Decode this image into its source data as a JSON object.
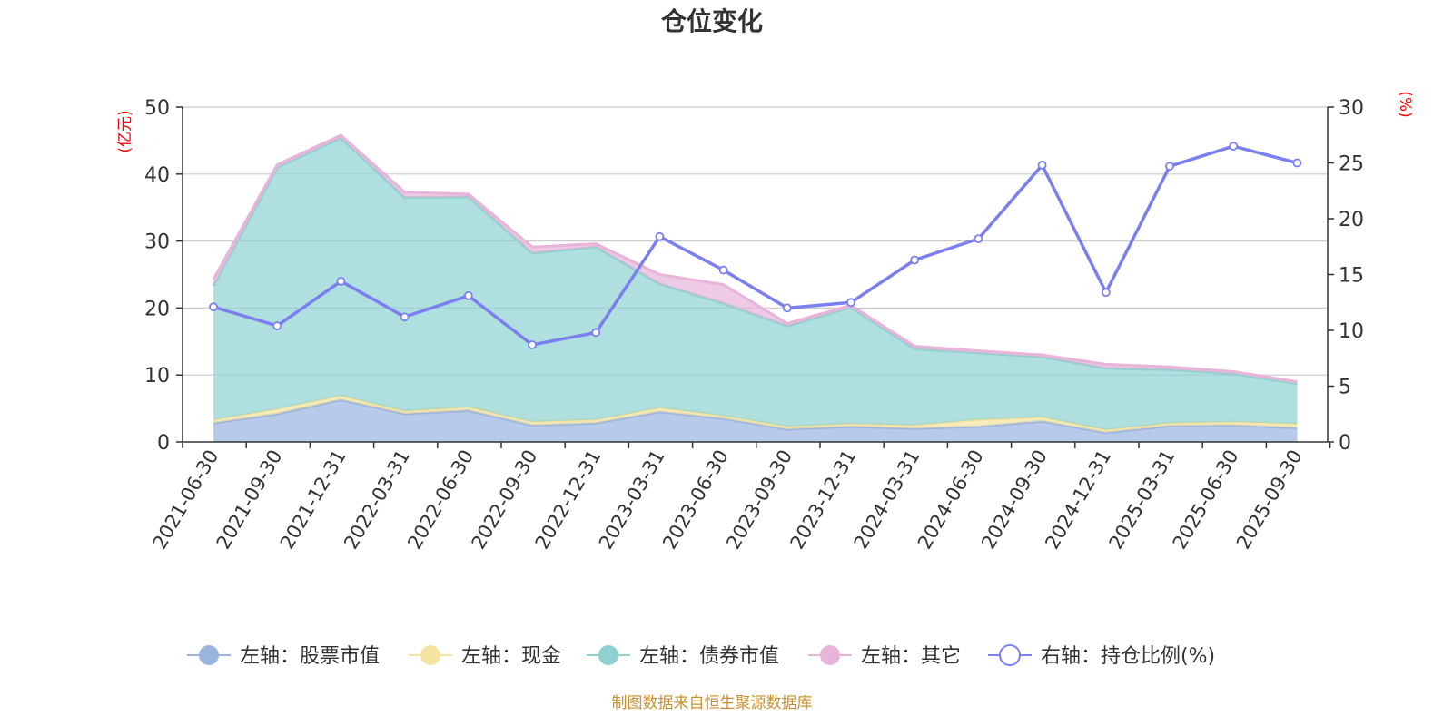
{
  "chart_data": {
    "type": "area",
    "title": "仓位变化",
    "left_axis_unit": "(亿元)",
    "right_axis_unit": "(%)",
    "categories": [
      "2021-06-30",
      "2021-09-30",
      "2021-12-31",
      "2022-03-31",
      "2022-06-30",
      "2022-09-30",
      "2022-12-31",
      "2023-03-31",
      "2023-06-30",
      "2023-09-30",
      "2023-12-31",
      "2024-03-31",
      "2024-06-30",
      "2024-09-30",
      "2024-12-31",
      "2025-03-31",
      "2025-06-30",
      "2025-09-30"
    ],
    "left_ylim": [
      0,
      50
    ],
    "left_ticks": [
      0,
      10,
      20,
      30,
      40,
      50
    ],
    "right_ylim": [
      0,
      30
    ],
    "right_ticks": [
      0,
      5,
      10,
      15,
      20,
      25,
      30
    ],
    "series": [
      {
        "name": "左轴：股票市值",
        "axis": "left",
        "kind": "stacked-area",
        "color": "#9ab4e0",
        "values": [
          2.8,
          4.2,
          6.3,
          4.2,
          4.7,
          2.5,
          2.8,
          4.5,
          3.5,
          1.9,
          2.3,
          2.0,
          2.3,
          3.1,
          1.4,
          2.4,
          2.5,
          2.1
        ]
      },
      {
        "name": "左轴：现金",
        "axis": "left",
        "kind": "stacked-area",
        "color": "#f5e4a2",
        "values": [
          0.5,
          0.7,
          0.6,
          0.4,
          0.5,
          0.5,
          0.5,
          0.6,
          0.4,
          0.4,
          0.4,
          0.5,
          1.0,
          0.6,
          0.4,
          0.4,
          0.5,
          0.6
        ]
      },
      {
        "name": "左轴：债券市值",
        "axis": "left",
        "kind": "stacked-area",
        "color": "#8fd1d1",
        "values": [
          20.0,
          36.1,
          38.5,
          31.9,
          31.4,
          25.2,
          25.8,
          18.5,
          16.8,
          15.0,
          17.4,
          11.4,
          10.0,
          9.0,
          9.2,
          8.0,
          7.2,
          6.0
        ]
      },
      {
        "name": "左轴：其它",
        "axis": "left",
        "kind": "stacked-area",
        "color": "#e8b4da",
        "values": [
          1.0,
          0.4,
          0.4,
          0.8,
          0.4,
          0.9,
          0.5,
          1.4,
          2.8,
          0.4,
          0.3,
          0.4,
          0.3,
          0.3,
          0.6,
          0.4,
          0.3,
          0.3
        ]
      },
      {
        "name": "右轴：持仓比例(%)",
        "axis": "right",
        "kind": "line",
        "color": "#7b7ff0",
        "values": [
          12.1,
          10.4,
          14.4,
          11.2,
          13.1,
          8.7,
          9.8,
          18.4,
          15.4,
          12.0,
          12.5,
          16.3,
          18.2,
          24.8,
          13.4,
          24.7,
          26.5,
          25.0
        ]
      }
    ]
  },
  "source_note": "制图数据来自恒生聚源数据库",
  "colors": {
    "unit_label": "#ff0000",
    "source_note": "#c8912e",
    "grid": "#cccccc",
    "axis": "#333333"
  }
}
